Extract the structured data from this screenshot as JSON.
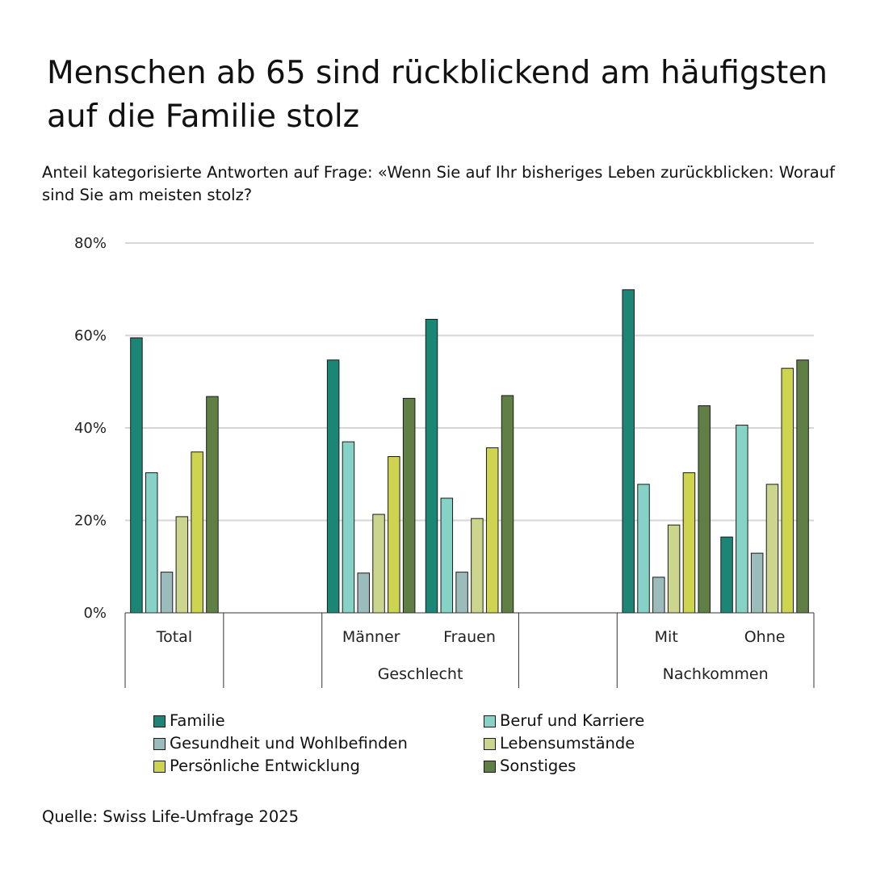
{
  "title": "Menschen ab 65 sind rückblickend am häufigsten auf die Familie stolz",
  "subtitle": "Anteil kategorisierte Antworten auf Frage: «Wenn Sie auf Ihr bisheriges Leben zurückblicken: Worauf sind Sie am meisten stolz?",
  "source": "Quelle: Swiss Life-Umfrage 2025",
  "chart_data": {
    "type": "bar",
    "ylim": [
      0,
      80
    ],
    "yticks": [
      "0%",
      "20%",
      "40%",
      "60%",
      "80%"
    ],
    "grid": true,
    "legend_position": "bottom",
    "categories": [
      "Total",
      "Männer",
      "Frauen",
      "Mit",
      "Ohne"
    ],
    "groups": [
      {
        "label": "",
        "categories": [
          "Total"
        ]
      },
      {
        "label": "Geschlecht",
        "categories": [
          "Männer",
          "Frauen"
        ]
      },
      {
        "label": "Nachkommen",
        "categories": [
          "Mit",
          "Ohne"
        ]
      }
    ],
    "series": [
      {
        "name": "Familie",
        "color": "#1b8576",
        "values": [
          59.5,
          54.7,
          63.5,
          69.9,
          16.4
        ]
      },
      {
        "name": "Beruf und Karriere",
        "color": "#86d2c6",
        "values": [
          30.3,
          37.0,
          24.8,
          27.8,
          40.6
        ]
      },
      {
        "name": "Gesundheit und Wohlbefinden",
        "color": "#9cbcbc",
        "values": [
          8.8,
          8.6,
          8.8,
          7.7,
          12.9
        ]
      },
      {
        "name": "Lebensumstände",
        "color": "#ccd58e",
        "values": [
          20.8,
          21.3,
          20.4,
          19.0,
          27.8
        ]
      },
      {
        "name": "Persönliche Entwicklung",
        "color": "#ced44f",
        "values": [
          34.8,
          33.8,
          35.7,
          30.3,
          52.9
        ]
      },
      {
        "name": "Sonstiges",
        "color": "#5f7f45",
        "values": [
          46.8,
          46.4,
          47.0,
          44.8,
          54.7
        ]
      }
    ]
  }
}
